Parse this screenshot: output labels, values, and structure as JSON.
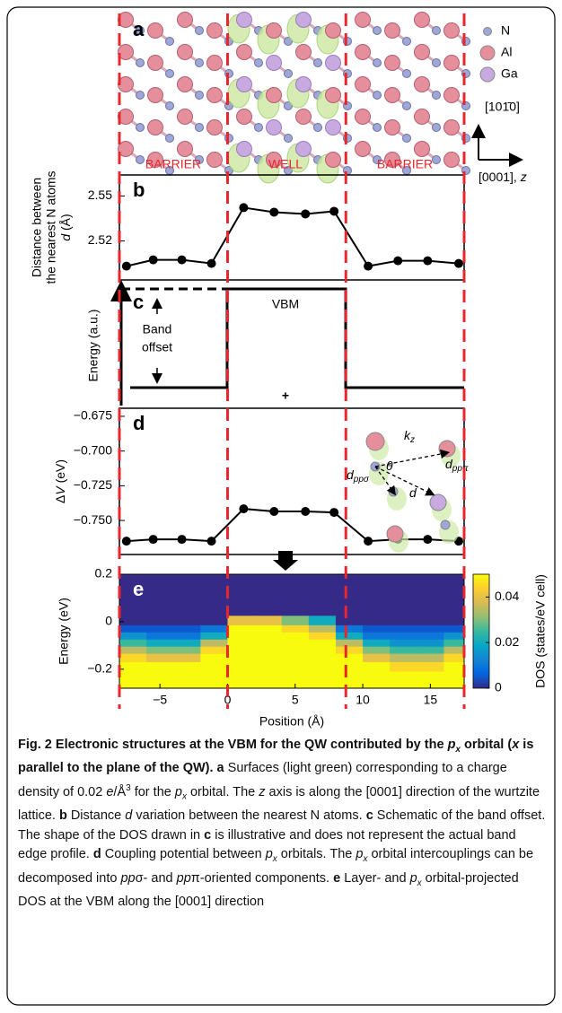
{
  "panel_a": {
    "label": "a",
    "legend": [
      "N",
      "Al",
      "Ga"
    ],
    "direction_y": "[101̄0]",
    "direction_z": [
      "[0001], ",
      "z"
    ],
    "regions": [
      "BARRIER",
      "WELL",
      "BARRIER"
    ]
  },
  "panel_c": {
    "label": "c",
    "ylabel": "Energy (a.u.)",
    "band_offset": [
      "Band",
      "offset"
    ],
    "vbm": "VBM",
    "plus": "+"
  },
  "chart_data": [
    {
      "type": "line",
      "label": "b",
      "ylabel": [
        "Distance between",
        "the nearest N atoms"
      ],
      "ylabel_var": [
        "d",
        " (Å)"
      ],
      "color": "#000000",
      "x": [
        -7.48,
        -5.5,
        -3.38,
        -1.19,
        1.19,
        3.44,
        5.76,
        7.88,
        10.4,
        12.6,
        14.8,
        17.1
      ],
      "values": [
        2.5032,
        2.5074,
        2.5074,
        2.505,
        2.5422,
        2.5392,
        2.538,
        2.5398,
        2.5032,
        2.5068,
        2.5068,
        2.505
      ],
      "xlim": [
        -8,
        17.5
      ],
      "ylim": [
        2.494,
        2.564
      ],
      "yticks": [
        2.52,
        2.55
      ]
    },
    {
      "type": "line",
      "label": "d",
      "ylabel": [
        "Δ",
        "V",
        " (eV)"
      ],
      "color": "#000000",
      "x": [
        -7.48,
        -5.5,
        -3.38,
        -1.19,
        1.19,
        3.44,
        5.76,
        7.88,
        10.4,
        12.6,
        14.8,
        17.1
      ],
      "values": [
        -0.7649,
        -0.7636,
        -0.7636,
        -0.7649,
        -0.7416,
        -0.7435,
        -0.7435,
        -0.7442,
        -0.7649,
        -0.7636,
        -0.7636,
        -0.7649
      ],
      "xlim": [
        -8,
        17.5
      ],
      "ylim": [
        -0.7745,
        -0.6692
      ],
      "yticks": [
        {
          "value": -0.675,
          "label": "−0.675"
        },
        {
          "value": -0.7,
          "label": "−0.700"
        },
        {
          "value": -0.725,
          "label": "−0.725"
        },
        {
          "value": -0.75,
          "label": "−0.750"
        }
      ],
      "inset_labels": [
        [
          "k",
          "z"
        ],
        [
          "θ"
        ],
        [
          "d",
          "ppπ"
        ],
        [
          "d",
          "ppσ"
        ],
        [
          "d"
        ]
      ]
    },
    {
      "type": "heatmap",
      "label": "e",
      "ylabel": "Energy (eV)",
      "xlabel": "Position (Å)",
      "clabel": "DOS (states/eV cell)",
      "x": [
        -7,
        -5,
        -3,
        -1,
        1,
        3,
        5,
        7,
        9,
        11,
        13,
        15,
        17
      ],
      "y": [
        0.15,
        0.05,
        0,
        -0.03,
        -0.06,
        -0.09,
        -0.12,
        -0.15,
        -0.19,
        -0.23,
        -0.26
      ],
      "z": [
        [
          0,
          0,
          0,
          0,
          0,
          0,
          0,
          0,
          0,
          0,
          0,
          0,
          0
        ],
        [
          0,
          0,
          0,
          0,
          0,
          0,
          0,
          0,
          0,
          0,
          0,
          0,
          0
        ],
        [
          0,
          0,
          0,
          0,
          0.04,
          0.04,
          0.03,
          0.02,
          0,
          0,
          0,
          0,
          0
        ],
        [
          0.005,
          0.005,
          0.005,
          0.01,
          0.05,
          0.05,
          0.045,
          0.035,
          0.01,
          0.005,
          0.005,
          0.005,
          0.005
        ],
        [
          0.015,
          0.01,
          0.01,
          0.02,
          0.05,
          0.05,
          0.05,
          0.045,
          0.02,
          0.01,
          0.01,
          0.01,
          0.015
        ],
        [
          0.025,
          0.02,
          0.02,
          0.035,
          0.05,
          0.05,
          0.05,
          0.05,
          0.035,
          0.02,
          0.015,
          0.015,
          0.025
        ],
        [
          0.035,
          0.03,
          0.03,
          0.045,
          0.05,
          0.05,
          0.05,
          0.05,
          0.045,
          0.03,
          0.025,
          0.025,
          0.035
        ],
        [
          0.045,
          0.04,
          0.04,
          0.05,
          0.05,
          0.05,
          0.05,
          0.05,
          0.05,
          0.04,
          0.035,
          0.035,
          0.045
        ],
        [
          0.05,
          0.05,
          0.05,
          0.05,
          0.05,
          0.05,
          0.05,
          0.05,
          0.05,
          0.05,
          0.045,
          0.045,
          0.05
        ],
        [
          0.05,
          0.05,
          0.05,
          0.05,
          0.05,
          0.05,
          0.05,
          0.05,
          0.05,
          0.05,
          0.05,
          0.05,
          0.05
        ],
        [
          0.05,
          0.05,
          0.05,
          0.05,
          0.05,
          0.05,
          0.05,
          0.05,
          0.05,
          0.05,
          0.05,
          0.05,
          0.05
        ]
      ],
      "colormap": [
        "#352a87",
        "#0363e1",
        "#1485d4",
        "#06a7c6",
        "#38b99e",
        "#92bf73",
        "#d9ba56",
        "#fcce2e",
        "#f9fb0e"
      ],
      "clim": [
        0,
        0.05
      ],
      "cticks": [
        0,
        0.02,
        0.04
      ],
      "xlim": [
        -8,
        17.5
      ],
      "ylim": [
        -0.28,
        0.2
      ],
      "xticks": [
        {
          "value": -5,
          "label": "−5"
        },
        0,
        5,
        10,
        15
      ],
      "yticks": [
        0.2,
        0,
        {
          "value": -0.2,
          "label": "−0.2"
        }
      ],
      "boundaries": [
        -8,
        0,
        8.75,
        17.5
      ],
      "boundary_color": "#e8262b"
    }
  ],
  "caption": {
    "runs": [
      [
        "Fig. 2 Electronic structures at the VBM for the QW contributed by the ",
        "b"
      ],
      [
        "p",
        "bi"
      ],
      [
        "x",
        "bis"
      ],
      [
        " orbital (",
        "b"
      ],
      [
        "x",
        "bi"
      ],
      [
        " is parallel to the plane of the QW). ",
        "b"
      ],
      [
        "a",
        "b"
      ],
      [
        " Surfaces (light green) corresponding to a charge density of 0.02 ",
        "r"
      ],
      [
        "e",
        "i"
      ],
      [
        "/Å",
        "r"
      ],
      [
        "3",
        "sup"
      ],
      [
        " for the ",
        "r"
      ],
      [
        "p",
        "i"
      ],
      [
        "x",
        "is"
      ],
      [
        " orbital. The ",
        "r"
      ],
      [
        "z",
        "i"
      ],
      [
        " axis is along the [0001] direction of the wurtzite lattice. ",
        "r"
      ],
      [
        "b",
        "b"
      ],
      [
        " Distance ",
        "r"
      ],
      [
        "d",
        "i"
      ],
      [
        " variation between the nearest N atoms. ",
        "r"
      ],
      [
        "c",
        "b"
      ],
      [
        " Schematic of the band offset. The shape of the DOS drawn in ",
        "r"
      ],
      [
        "c",
        "b"
      ],
      [
        " is illustrative and does not represent the actual band edge profile. ",
        "r"
      ],
      [
        "d",
        "b"
      ],
      [
        " Coupling potential between ",
        "r"
      ],
      [
        "p",
        "i"
      ],
      [
        "x",
        "is"
      ],
      [
        " orbitals. The ",
        "r"
      ],
      [
        "p",
        "i"
      ],
      [
        "x",
        "is"
      ],
      [
        " orbital intercouplings can be decomposed into ",
        "r"
      ],
      [
        "pp",
        "i"
      ],
      [
        "σ- and ",
        "r"
      ],
      [
        "pp",
        "i"
      ],
      [
        "π-oriented components. ",
        "r"
      ],
      [
        "e",
        "b"
      ],
      [
        " Layer- and ",
        "r"
      ],
      [
        "p",
        "i"
      ],
      [
        "x",
        "is"
      ],
      [
        " orbital-projected DOS at the VBM along the [0001] direction",
        "r"
      ]
    ]
  }
}
